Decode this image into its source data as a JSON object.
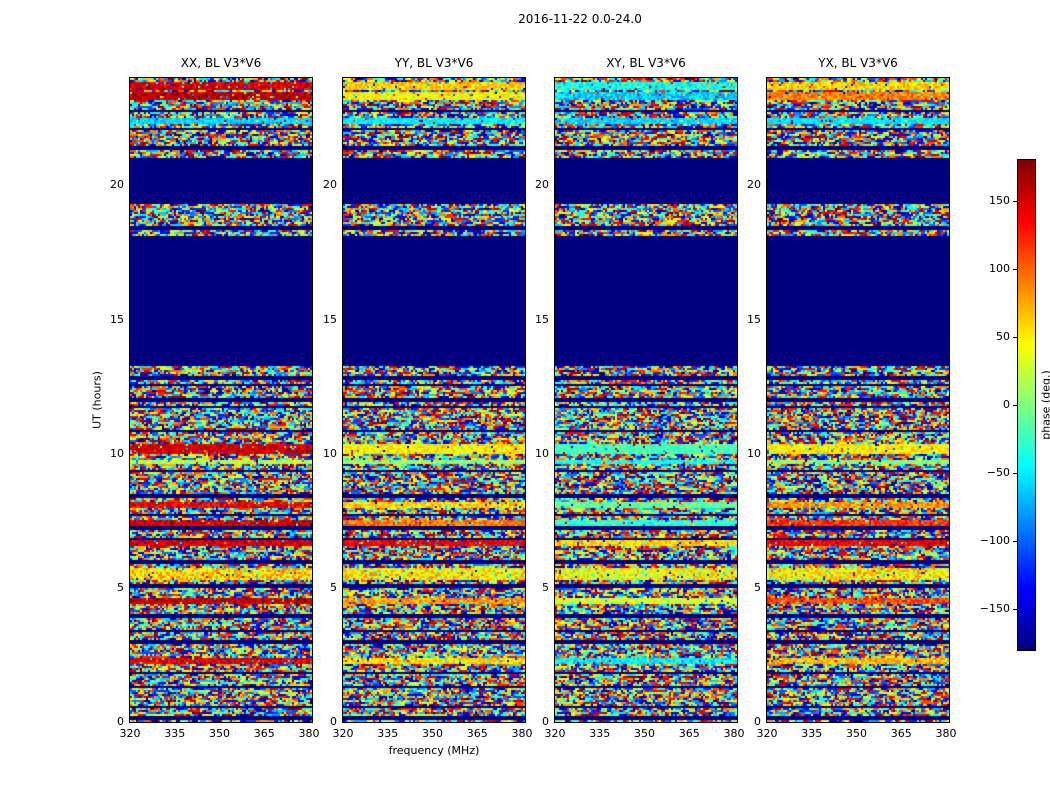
{
  "figure": {
    "title": "2016-11-22 0.0-24.0"
  },
  "chart_data": {
    "type": "heatmap",
    "title": "2016-11-22 0.0-24.0",
    "colormap": "jet",
    "panels": [
      {
        "key": "XX",
        "title": "XX, BL V3*V6"
      },
      {
        "key": "YY",
        "title": "YY, BL V3*V6"
      },
      {
        "key": "XY",
        "title": "XY, BL V3*V6"
      },
      {
        "key": "YX",
        "title": "YX, BL V3*V6"
      }
    ],
    "x_axis": {
      "label": "frequency (MHz)",
      "range": [
        320,
        381
      ],
      "ticks": [
        320,
        335,
        350,
        365,
        380
      ]
    },
    "y_axis": {
      "label": "UT (hours)",
      "range": [
        0,
        24
      ],
      "ticks": [
        0,
        5,
        10,
        15,
        20
      ]
    },
    "colorbar": {
      "label": "phase (deg.)",
      "range": [
        -180,
        180
      ],
      "ticks": [
        150,
        100,
        50,
        0,
        -50,
        -100,
        -150
      ]
    },
    "no_data_color": "#00007f",
    "time_structure": [
      {
        "from": 0.0,
        "to": 13.3,
        "type": "noise"
      },
      {
        "from": 13.3,
        "to": 18.05,
        "type": "blank"
      },
      {
        "from": 18.05,
        "to": 19.3,
        "type": "noise"
      },
      {
        "from": 19.3,
        "to": 21.0,
        "type": "blank"
      },
      {
        "from": 21.0,
        "to": 24.0,
        "type": "noise"
      }
    ],
    "bands": [
      {
        "t0": 23.55,
        "t1": 23.85,
        "jitter": 25,
        "values": {
          "XX": 150,
          "YY": 60,
          "XY": -40,
          "YX": 60
        }
      },
      {
        "t0": 23.2,
        "t1": 23.45,
        "jitter": 25,
        "values": {
          "XX": 160,
          "YY": 45,
          "XY": -60,
          "YX": 90
        }
      },
      {
        "t0": 22.3,
        "t1": 22.5,
        "jitter": 15,
        "values": {
          "XX": -60,
          "YY": -50,
          "XY": -60,
          "YX": -55
        }
      },
      {
        "t0": 10.0,
        "t1": 10.35,
        "jitter": 20,
        "values": {
          "XX": 150,
          "YY": 50,
          "XY": -20,
          "YX": 50
        }
      },
      {
        "t0": 9.6,
        "t1": 9.8,
        "jitter": 20,
        "values": {
          "XX": 20,
          "YY": 10,
          "XY": -40,
          "YX": 0
        }
      },
      {
        "t0": 7.95,
        "t1": 8.2,
        "jitter": 25,
        "values": {
          "XX": 140,
          "YY": 60,
          "XY": -10,
          "YX": 80
        }
      },
      {
        "t0": 7.3,
        "t1": 7.55,
        "jitter": 25,
        "values": {
          "XX": 150,
          "YY": 90,
          "XY": -30,
          "YX": 120
        }
      },
      {
        "t0": 6.55,
        "t1": 6.8,
        "jitter": 20,
        "values": {
          "XX": 150,
          "YY": 140,
          "XY": 60,
          "YX": 140
        }
      },
      {
        "t0": 5.3,
        "t1": 5.75,
        "jitter": 40,
        "values": {
          "XX": 60,
          "YY": 50,
          "XY": 40,
          "YX": 50
        }
      },
      {
        "t0": 4.4,
        "t1": 4.65,
        "jitter": 25,
        "values": {
          "XX": 155,
          "YY": 80,
          "XY": 30,
          "YX": 110
        }
      },
      {
        "t0": 2.15,
        "t1": 2.4,
        "jitter": 25,
        "values": {
          "XX": 145,
          "YY": 55,
          "XY": -50,
          "YX": 70
        }
      }
    ],
    "noise_seeds": {
      "XX": 11,
      "YY": 22,
      "XY": 33,
      "YX": 44
    },
    "structure_seed": 7
  }
}
